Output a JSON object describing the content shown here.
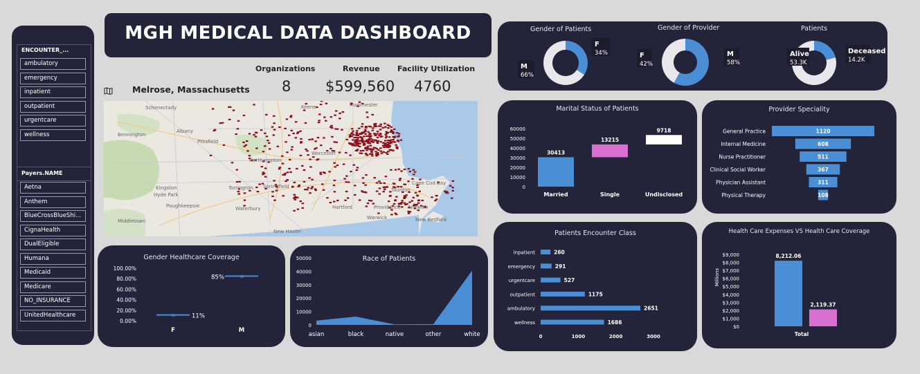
{
  "dashboard": {
    "title": "MGH MEDICAL DATA DASHBOARD"
  },
  "encounter_slicer": {
    "title": "ENCOUNTER_...",
    "items": [
      "ambulatory",
      "emergency",
      "inpatient",
      "outpatient",
      "urgentcare",
      "wellness"
    ]
  },
  "payers_slicer": {
    "title": "Payers.NAME",
    "items": [
      "Aetna",
      "Anthem",
      "BlueCrossBlueShi...",
      "CignaHealth",
      "DualEligible",
      "Humana",
      "Medicaid",
      "Medicare",
      "NO_INSURANCE",
      "UnitedHealthcare"
    ]
  },
  "kpis": {
    "organizations": {
      "label": "Organizations",
      "value": "8"
    },
    "revenue": {
      "label": "Revenue",
      "value": "$599,560"
    },
    "facility": {
      "label": "Facility Utilization",
      "value": "4760"
    }
  },
  "map": {
    "location": "Melrose, Massachusetts",
    "place_labels": [
      "Schenectady",
      "Albany",
      "Pittsfield",
      "Northampton",
      "Worcester",
      "Springfield",
      "Hartford",
      "Waterbury",
      "New Haven",
      "Providence",
      "Warwick",
      "Keene",
      "Manchester",
      "Kingston",
      "Hyde Park",
      "Poughkeepsie",
      "Middletown",
      "Torrington",
      "Norwich",
      "New Bedford",
      "Cape Cod Bay",
      "Taunton",
      "Bennington"
    ],
    "marker_color": "#8b0f1a"
  },
  "charts": {
    "gender_patients": {
      "title": "Gender of Patients"
    },
    "gender_provider": {
      "title": "Gender of Provider"
    },
    "patients": {
      "title": "Patients"
    },
    "marital": {
      "title": "Marital Status of Patients"
    },
    "specialty": {
      "title": "Provider Speciality"
    },
    "coverage": {
      "title": "Gender Healthcare Coverage"
    },
    "race": {
      "title": "Race of Patients"
    },
    "encounter": {
      "title": "Patients Encounter Class"
    },
    "expenses": {
      "title": "Health Care Expenses VS Health Care Coverage"
    }
  },
  "chart_data": [
    {
      "id": "gender_patients",
      "type": "pie",
      "title": "Gender of Patients",
      "slices": [
        {
          "label": "F",
          "value": 34,
          "text": "34%",
          "color": "#4a8fd6"
        },
        {
          "label": "M",
          "value": 66,
          "text": "66%",
          "color": "#e8e8ec"
        }
      ]
    },
    {
      "id": "gender_provider",
      "type": "pie",
      "title": "Gender of Provider",
      "slices": [
        {
          "label": "M",
          "value": 58,
          "text": "58%",
          "color": "#4a8fd6"
        },
        {
          "label": "F",
          "value": 42,
          "text": "42%",
          "color": "#e8e8ec"
        }
      ]
    },
    {
      "id": "patients",
      "type": "pie",
      "title": "Patients",
      "slices": [
        {
          "label": "Deceased",
          "value": 14.2,
          "text": "14.2K",
          "color": "#4a8fd6"
        },
        {
          "label": "Alive",
          "value": 53.3,
          "text": "53.3K",
          "color": "#e8e8ec"
        }
      ]
    },
    {
      "id": "marital",
      "type": "bar",
      "title": "Marital Status of Patients",
      "subtype": "waterfall",
      "categories": [
        "Married",
        "Single",
        "Undisclosed"
      ],
      "values": [
        30413,
        13215,
        9718
      ],
      "colors": [
        "#4a8fd6",
        "#d96fd0",
        "#ffffff"
      ],
      "ylim": [
        0,
        60000
      ],
      "yticks": [
        0,
        10000,
        20000,
        30000,
        40000,
        50000,
        60000
      ]
    },
    {
      "id": "specialty",
      "type": "bar",
      "title": "Provider Speciality",
      "subtype": "funnel",
      "categories": [
        "General Practice",
        "Internal Medicine",
        "Nurse Practitioner",
        "Clinical Social Worker",
        "Physician Assistant",
        "Physical Therapy"
      ],
      "values": [
        1120,
        608,
        511,
        367,
        311,
        108
      ]
    },
    {
      "id": "coverage",
      "type": "scatter",
      "title": "Gender Healthcare Coverage",
      "categories": [
        "F",
        "M"
      ],
      "values": [
        11,
        85
      ],
      "labels": [
        "11%",
        "85%"
      ],
      "ylim": [
        0,
        100
      ],
      "yticks": [
        "0.00%",
        "20.00%",
        "40.00%",
        "60.00%",
        "80.00%",
        "100.00%"
      ]
    },
    {
      "id": "race",
      "type": "area",
      "title": "Race of Patients",
      "categories": [
        "asian",
        "black",
        "native",
        "other",
        "white"
      ],
      "values": [
        3200,
        6200,
        400,
        600,
        40500
      ],
      "ylim": [
        0,
        50000
      ],
      "yticks": [
        0,
        10000,
        20000,
        30000,
        40000,
        50000
      ]
    },
    {
      "id": "encounter",
      "type": "bar",
      "title": "Patients Encounter Class",
      "orientation": "horizontal",
      "categories": [
        "inpatient",
        "emergency",
        "urgentcare",
        "outpatient",
        "ambulatory",
        "wellness"
      ],
      "values": [
        260,
        291,
        527,
        1175,
        2651,
        1686
      ],
      "xlim": [
        0,
        3000
      ],
      "xticks": [
        0,
        1000,
        2000,
        3000
      ]
    },
    {
      "id": "expenses",
      "type": "bar",
      "title": "Health Care Expenses VS Health Care Coverage",
      "categories": [
        "Total"
      ],
      "ylabel": "Millions",
      "series": [
        {
          "values": [
            8212.06
          ],
          "label": "8,212.06",
          "color": "#4a8fd6"
        },
        {
          "values": [
            2119.37
          ],
          "label": "2,119.37",
          "color": "#d96fd0"
        }
      ],
      "ylim": [
        0,
        9000
      ],
      "yticks": [
        "$0",
        "$1,000",
        "$2,000",
        "$3,000",
        "$4,000",
        "$5,000",
        "$6,000",
        "$7,000",
        "$8,000",
        "$9,000"
      ]
    }
  ]
}
